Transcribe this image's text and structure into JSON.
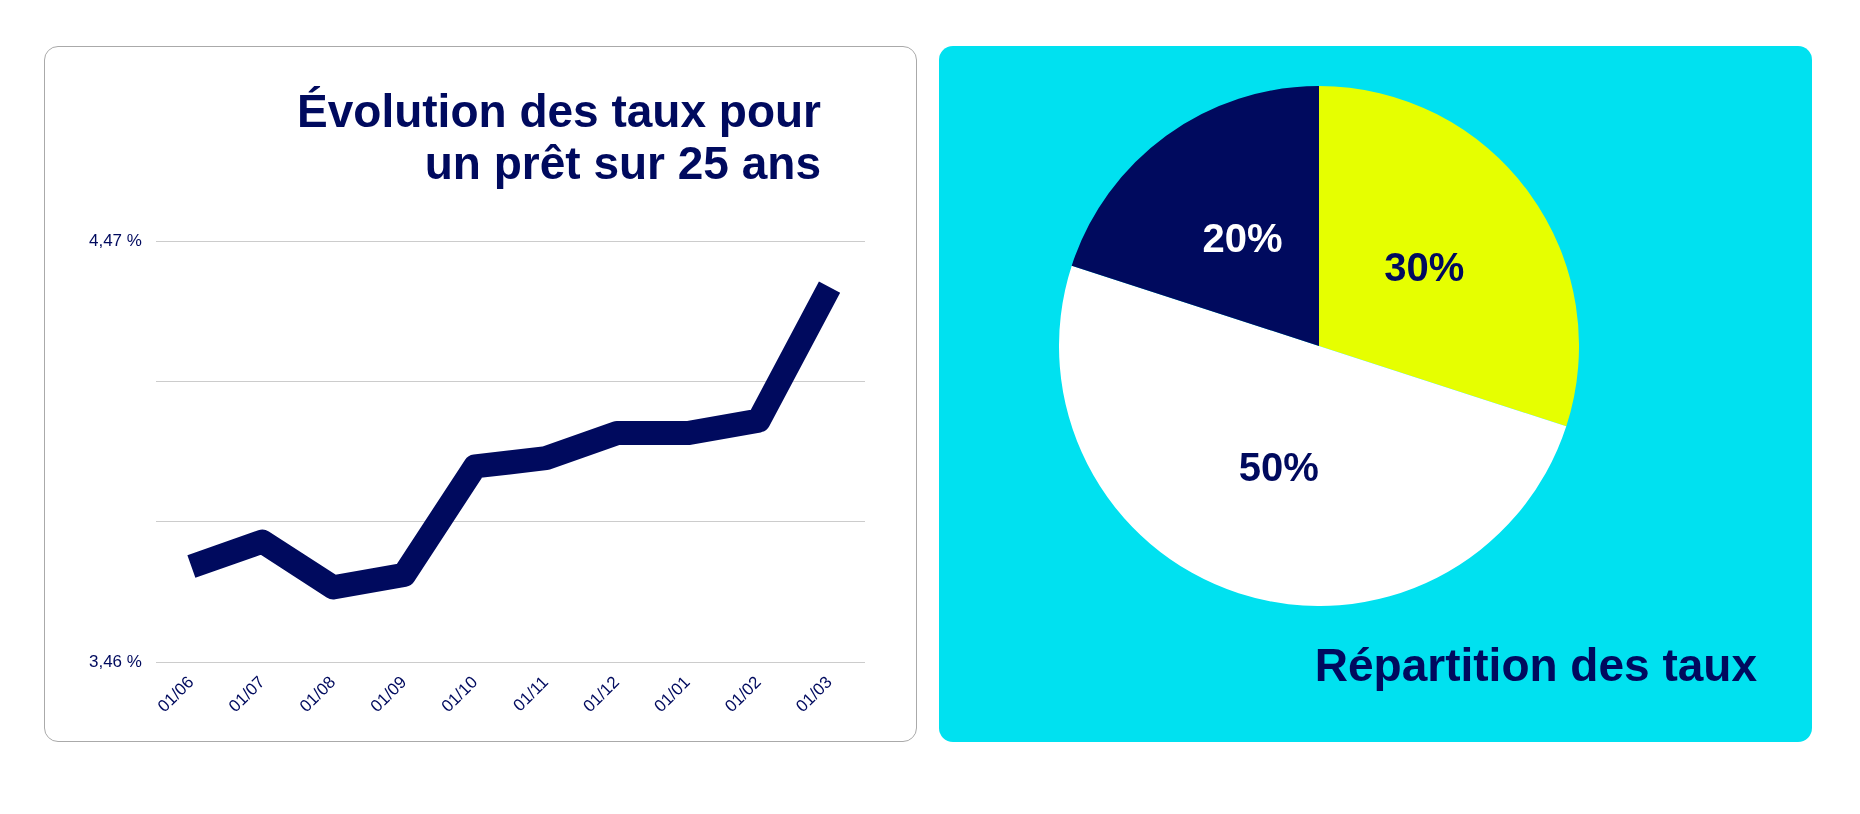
{
  "chart_data": [
    {
      "type": "line",
      "title": "Évolution des taux pour un prêt sur 25 ans",
      "categories": [
        "01/06",
        "01/07",
        "01/08",
        "01/09",
        "01/10",
        "01/11",
        "01/12",
        "01/01",
        "01/02",
        "01/03"
      ],
      "series": [
        {
          "color": "#000a5e",
          "values": [
            3.69,
            3.75,
            3.64,
            3.67,
            3.93,
            3.95,
            4.01,
            4.01,
            4.04,
            4.36
          ]
        }
      ],
      "ylim": [
        3.46,
        4.47
      ],
      "yticks": [
        {
          "value": 3.46,
          "label": "3,46 %"
        },
        {
          "value": 3.797,
          "label": null
        },
        {
          "value": 4.133,
          "label": null
        },
        {
          "value": 4.47,
          "label": "4,47 %"
        }
      ],
      "grid": "y",
      "legend": false,
      "marker": "none"
    },
    {
      "type": "pie",
      "title": "Répartition des taux",
      "categories": [
        null,
        null,
        null
      ],
      "values": [
        30,
        50,
        20
      ],
      "colors": [
        "#e6ff00",
        "#ffffff",
        "#000a5e"
      ],
      "value_labels": [
        "30%",
        "50%",
        "20%"
      ],
      "legend": false
    }
  ]
}
